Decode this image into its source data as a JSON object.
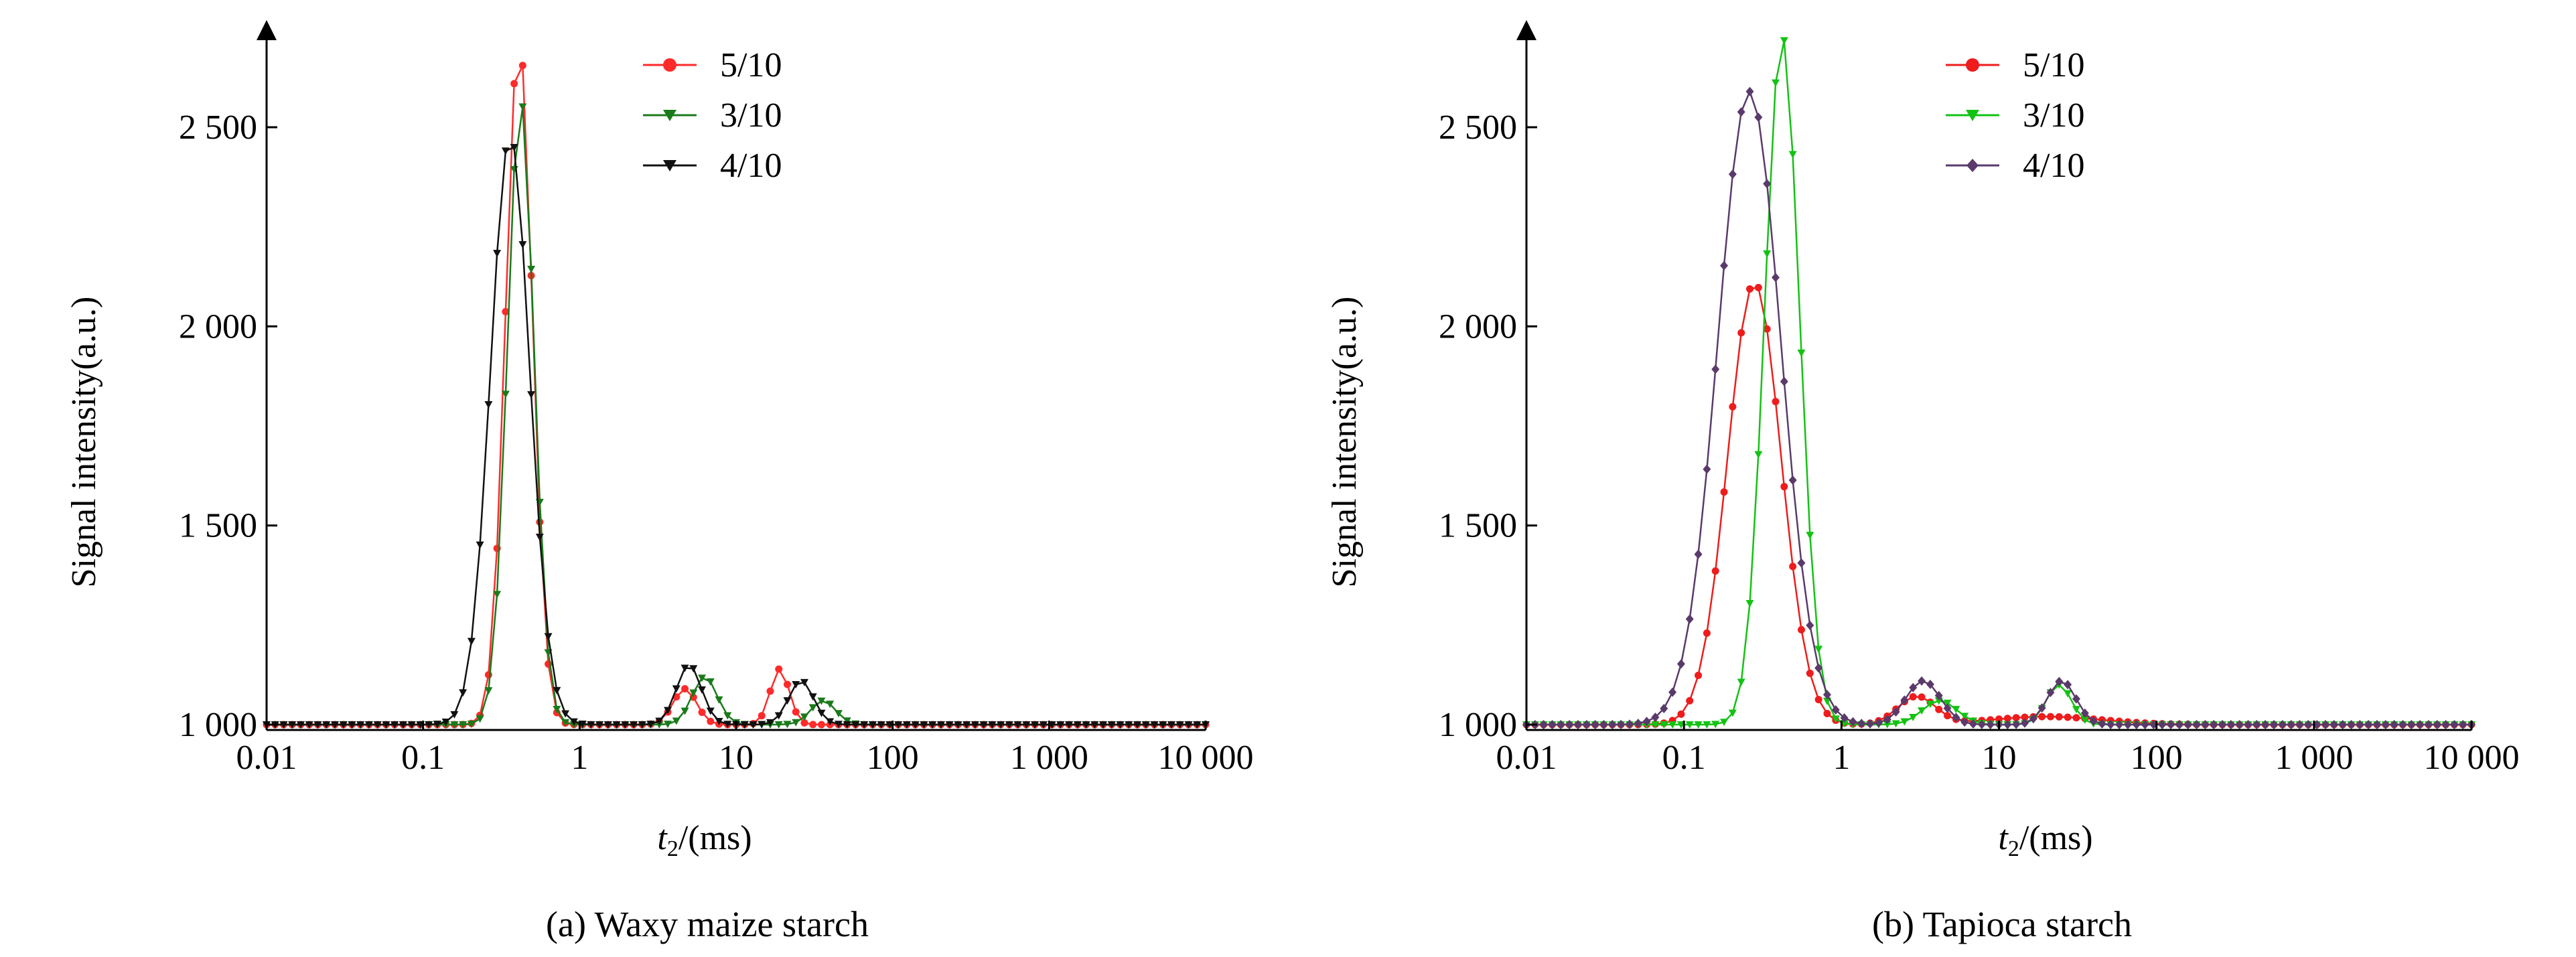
{
  "chart_data": [
    {
      "type": "line",
      "caption": "(a) Waxy maize starch",
      "xlabel_main": "t",
      "xlabel_sub": "2",
      "xlabel_rest": "/(ms)",
      "ylabel": "Signal intensity(a.u.)",
      "x_scale": "log",
      "xlim": [
        0.01,
        10000
      ],
      "ylim": [
        980,
        2750
      ],
      "x_ticks": [
        0.01,
        0.1,
        1,
        10,
        100,
        1000,
        10000
      ],
      "x_tick_labels": [
        "0.01",
        "0.1",
        "1",
        "10",
        "100",
        "1 000",
        "10 000"
      ],
      "y_ticks": [
        1000,
        1500,
        2000,
        2500
      ],
      "y_tick_labels": [
        "1 000",
        "1 500",
        "2 000",
        "2 500"
      ],
      "legend_position": "top-center",
      "series": [
        {
          "name": "5/10",
          "color": "#ff2a2a",
          "marker": "circle",
          "peaks": [
            [
              0.41,
              2720,
              0.085
            ],
            [
              4.7,
              1090,
              0.075
            ],
            [
              19,
              1140,
              0.06
            ]
          ]
        },
        {
          "name": "3/10",
          "color": "#1a7a1a",
          "marker": "triangle-down",
          "peaks": [
            [
              0.42,
              2570,
              0.085
            ],
            [
              6.3,
              1120,
              0.08
            ],
            [
              36,
              1060,
              0.08
            ]
          ]
        },
        {
          "name": "4/10",
          "color": "#111111",
          "marker": "triangle-down",
          "peaks": [
            [
              0.36,
              2480,
              0.125
            ],
            [
              5.0,
              1150,
              0.08
            ],
            [
              26,
              1110,
              0.08
            ]
          ]
        }
      ]
    },
    {
      "type": "line",
      "caption": "(b) Tapioca starch",
      "xlabel_main": "t",
      "xlabel_sub": "2",
      "xlabel_rest": "/(ms)",
      "ylabel": "Signal intensity(a.u.)",
      "x_scale": "log",
      "xlim": [
        0.01,
        10000
      ],
      "ylim": [
        980,
        2750
      ],
      "x_ticks": [
        0.01,
        0.1,
        1,
        10,
        100,
        1000,
        10000
      ],
      "x_tick_labels": [
        "0.01",
        "0.1",
        "1",
        "10",
        "100",
        "1 000",
        "10 000"
      ],
      "y_ticks": [
        1000,
        1500,
        2000,
        2500
      ],
      "y_tick_labels": [
        "1 000",
        "1 500",
        "2 000",
        "2 500"
      ],
      "legend_position": "top-center",
      "series": [
        {
          "name": "5/10",
          "color": "#ee1c1c",
          "marker": "circle",
          "peaks": [
            [
              0.28,
              2110,
              0.17
            ],
            [
              3.0,
              1070,
              0.12
            ],
            [
              20,
              1020,
              0.35
            ]
          ]
        },
        {
          "name": "3/10",
          "color": "#13c213",
          "marker": "triangle-down",
          "peaks": [
            [
              0.42,
              2730,
              0.11
            ],
            [
              4.2,
              1060,
              0.11
            ],
            [
              24,
              1100,
              0.08
            ]
          ]
        },
        {
          "name": "4/10",
          "color": "#5a3a6a",
          "marker": "diamond",
          "peaks": [
            [
              0.26,
              2590,
              0.2
            ],
            [
              3.3,
              1110,
              0.11
            ],
            [
              25,
              1110,
              0.09
            ]
          ]
        }
      ]
    }
  ]
}
